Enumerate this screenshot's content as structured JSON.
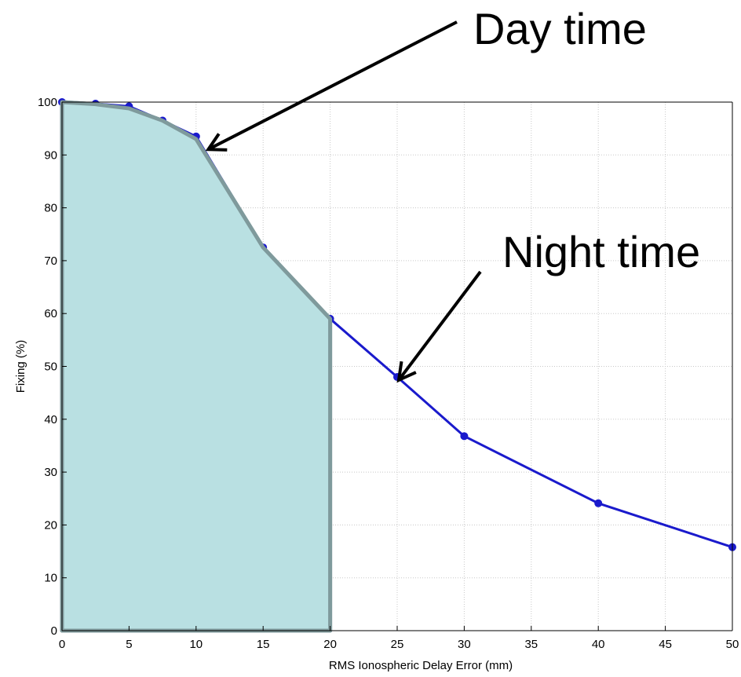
{
  "chart_data": {
    "type": "line",
    "title": "",
    "xlabel": "RMS Ionospheric Delay Error (mm)",
    "ylabel": "Fixing (%)",
    "xlim": [
      0,
      50
    ],
    "ylim": [
      0,
      100
    ],
    "x_ticks": [
      "0",
      "5",
      "10",
      "15",
      "20",
      "25",
      "30",
      "35",
      "40",
      "45",
      "50"
    ],
    "y_ticks": [
      "0",
      "10",
      "20",
      "30",
      "40",
      "50",
      "60",
      "70",
      "80",
      "90",
      "100"
    ],
    "grid": true,
    "series": [
      {
        "color": "#1a1acc",
        "x": [
          0,
          2.5,
          5,
          7.5,
          10,
          15,
          20,
          25,
          30,
          40,
          50
        ],
        "y": [
          100,
          99.7,
          99.2,
          96.5,
          93.5,
          72.5,
          59,
          48,
          36.8,
          24.1,
          15.8
        ]
      }
    ],
    "shaded_region": {
      "color": "#b9e0e2",
      "edge_color": "#7f9a9c",
      "x": [
        0,
        2.5,
        5,
        7.5,
        10,
        15,
        20
      ],
      "y": [
        100,
        99.6,
        98.8,
        96.5,
        93,
        72.5,
        59
      ]
    },
    "annotations": [
      {
        "text": "Day time",
        "target": [
          10.5,
          91.5
        ]
      },
      {
        "text": "Night time",
        "target": [
          25,
          48
        ]
      }
    ]
  }
}
